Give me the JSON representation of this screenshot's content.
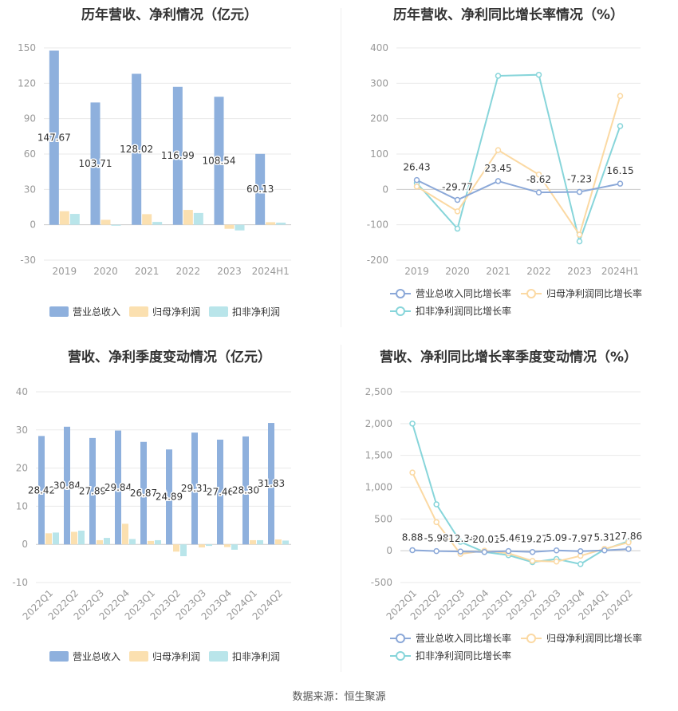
{
  "footer": "数据来源：恒生聚源",
  "colors": {
    "revenue": "#8eb0dd",
    "profit": "#fbe0b0",
    "deducted": "#b9e5ea",
    "revenue_line": "#8ba8d8",
    "profit_line": "#fbd9a3",
    "deducted_line": "#87d5da",
    "grid": "#e9e9e9",
    "axis_text": "#999999",
    "label_text": "#333333"
  },
  "chart_data": [
    {
      "type": "bar",
      "title": "历年营收、净利情况（亿元）",
      "categories": [
        "2019",
        "2020",
        "2021",
        "2022",
        "2023",
        "2024H1"
      ],
      "ylim": [
        -30,
        150
      ],
      "yticks": [
        -30,
        0,
        30,
        60,
        90,
        120,
        150
      ],
      "series": [
        {
          "name": "营业总收入",
          "values": [
            147.67,
            103.71,
            128.02,
            116.99,
            108.54,
            60.13
          ],
          "labels": [
            "147.67",
            "103.71",
            "128.02",
            "116.99",
            "108.54",
            "60.13"
          ]
        },
        {
          "name": "归母净利润",
          "values": [
            11.5,
            4.2,
            9.0,
            12.6,
            -3.4,
            2.2
          ]
        },
        {
          "name": "扣非净利润",
          "values": [
            9.2,
            -0.8,
            2.4,
            10.0,
            -4.8,
            1.8
          ]
        }
      ]
    },
    {
      "type": "line",
      "title": "历年营收、净利同比增长率情况（%）",
      "categories": [
        "2019",
        "2020",
        "2021",
        "2022",
        "2023",
        "2024H1"
      ],
      "ylim": [
        -200,
        400
      ],
      "yticks": [
        -200,
        -100,
        0,
        100,
        200,
        300,
        400
      ],
      "series": [
        {
          "name": "营业总收入同比增长率",
          "values": [
            26.43,
            -29.77,
            23.45,
            -8.62,
            -7.23,
            16.15
          ],
          "labels": [
            "26.43",
            "-29.77",
            "23.45",
            "-8.62",
            "-7.23",
            "16.15"
          ]
        },
        {
          "name": "归母净利润同比增长率",
          "values": [
            8,
            -62,
            111,
            42,
            -128,
            264
          ]
        },
        {
          "name": "扣非净利润同比增长率",
          "values": [
            18,
            -111,
            321,
            324,
            -147,
            179
          ]
        }
      ]
    },
    {
      "type": "bar",
      "title": "营收、净利季度变动情况（亿元）",
      "categories": [
        "2022Q1",
        "2022Q2",
        "2022Q3",
        "2022Q4",
        "2023Q1",
        "2023Q2",
        "2023Q3",
        "2023Q4",
        "2024Q1",
        "2024Q2"
      ],
      "ylim": [
        -10,
        40
      ],
      "yticks": [
        -10,
        0,
        10,
        20,
        30,
        40
      ],
      "series": [
        {
          "name": "营业总收入",
          "values": [
            28.42,
            30.84,
            27.89,
            29.84,
            26.87,
            24.89,
            29.31,
            27.46,
            28.3,
            31.83
          ],
          "labels": [
            "28.42",
            "30.84",
            "27.89",
            "29.84",
            "26.87",
            "24.89",
            "29.31",
            "27.46",
            "28.30",
            "31.83"
          ]
        },
        {
          "name": "归母净利润",
          "values": [
            2.9,
            3.3,
            1.1,
            5.4,
            0.9,
            -1.9,
            -0.8,
            -0.7,
            1.1,
            1.3
          ]
        },
        {
          "name": "扣非净利润",
          "values": [
            3.1,
            3.6,
            1.7,
            1.4,
            1.1,
            -3.1,
            -0.4,
            -1.4,
            1.1,
            1.0
          ]
        }
      ]
    },
    {
      "type": "line",
      "title": "营收、净利同比增长率季度变动情况（%）",
      "categories": [
        "2022Q1",
        "2022Q2",
        "2022Q3",
        "2022Q4",
        "2023Q1",
        "2023Q2",
        "2023Q3",
        "2023Q4",
        "2024Q1",
        "2024Q2"
      ],
      "ylim": [
        -500,
        2500
      ],
      "yticks": [
        -500,
        0,
        500,
        1000,
        1500,
        2000,
        2500
      ],
      "ytick_labels": [
        "-500",
        "0",
        "500",
        "1,000",
        "1,500",
        "2,000",
        "2,500"
      ],
      "series": [
        {
          "name": "营业总收入同比增长率",
          "values": [
            8.88,
            -5.98,
            -12.34,
            -20.01,
            -5.46,
            -19.27,
            5.09,
            -7.97,
            5.31,
            27.86
          ],
          "labels": [
            "8.88",
            "-5.98",
            "-12.34",
            "-20.01",
            "-5.46",
            "-19.27",
            "5.09",
            "-7.97",
            "5.31",
            "27.86"
          ]
        },
        {
          "name": "归母净利润同比增长率",
          "values": [
            1230,
            450,
            -50,
            0,
            -40,
            -160,
            -170,
            -80,
            30,
            130
          ]
        },
        {
          "name": "扣非净利润同比增长率",
          "values": [
            2000,
            730,
            140,
            -20,
            -70,
            -180,
            -130,
            -210,
            20,
            150
          ]
        }
      ]
    }
  ]
}
